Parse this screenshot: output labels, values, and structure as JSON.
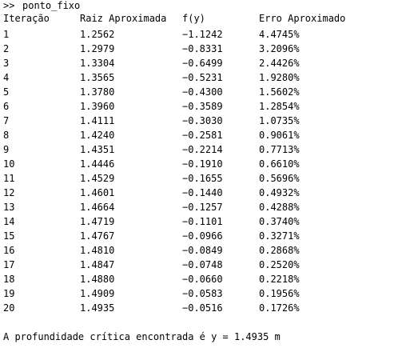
{
  "command": {
    "prompt": ">>",
    "text": "ponto_fixo"
  },
  "table": {
    "headers": [
      "Iteração",
      "Raiz Aproximada",
      "f(y)",
      "Erro Aproximado"
    ],
    "rows": [
      [
        "1",
        "1.2562",
        "−1.1242",
        "4.4745%"
      ],
      [
        "2",
        "1.2979",
        "−0.8331",
        "3.2096%"
      ],
      [
        "3",
        "1.3304",
        "−0.6499",
        "2.4426%"
      ],
      [
        "4",
        "1.3565",
        "−0.5231",
        "1.9280%"
      ],
      [
        "5",
        "1.3780",
        "−0.4300",
        "1.5602%"
      ],
      [
        "6",
        "1.3960",
        "−0.3589",
        "1.2854%"
      ],
      [
        "7",
        "1.4111",
        "−0.3030",
        "1.0735%"
      ],
      [
        "8",
        "1.4240",
        "−0.2581",
        "0.9061%"
      ],
      [
        "9",
        "1.4351",
        "−0.2214",
        "0.7713%"
      ],
      [
        "10",
        "1.4446",
        "−0.1910",
        "0.6610%"
      ],
      [
        "11",
        "1.4529",
        "−0.1655",
        "0.5696%"
      ],
      [
        "12",
        "1.4601",
        "−0.1440",
        "0.4932%"
      ],
      [
        "13",
        "1.4664",
        "−0.1257",
        "0.4288%"
      ],
      [
        "14",
        "1.4719",
        "−0.1101",
        "0.3740%"
      ],
      [
        "15",
        "1.4767",
        "−0.0966",
        "0.3271%"
      ],
      [
        "16",
        "1.4810",
        "−0.0849",
        "0.2868%"
      ],
      [
        "17",
        "1.4847",
        "−0.0748",
        "0.2520%"
      ],
      [
        "18",
        "1.4880",
        "−0.0660",
        "0.2218%"
      ],
      [
        "19",
        "1.4909",
        "−0.0583",
        "0.1956%"
      ],
      [
        "20",
        "1.4935",
        "−0.0516",
        "0.1726%"
      ]
    ]
  },
  "result": {
    "text": "A profundidade crítica encontrada é y = 1.4935 m"
  }
}
